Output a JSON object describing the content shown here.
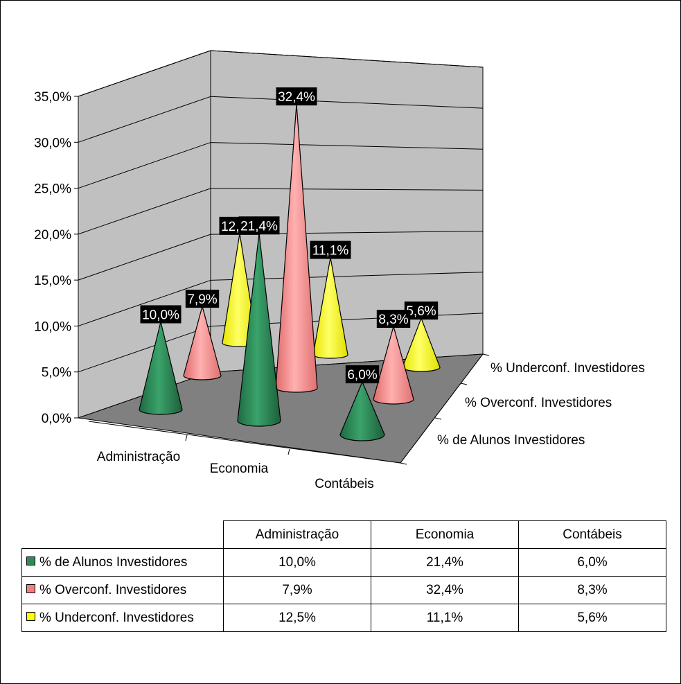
{
  "chart_data": {
    "type": "3d-cone-column",
    "categories": [
      "Administração",
      "Economia",
      "Contábeis"
    ],
    "series": [
      {
        "name": "% de Alunos Investidores",
        "color": "#2e8b57",
        "values": [
          10.0,
          21.4,
          6.0
        ],
        "value_labels": [
          "10,0%",
          "21,4%",
          "6,0%"
        ]
      },
      {
        "name": "% Overconf. Investidores",
        "color": "#f08080",
        "values": [
          7.9,
          32.4,
          8.3
        ],
        "value_labels": [
          "7,9%",
          "32,4%",
          "8,3%"
        ]
      },
      {
        "name": "% Underconf. Investidores",
        "color": "#ffff00",
        "values": [
          12.5,
          11.1,
          5.6
        ],
        "value_labels": [
          "12,5%",
          "11,1%",
          "5,6%"
        ]
      }
    ],
    "y_ticks": [
      "0,0%",
      "5,0%",
      "10,0%",
      "15,0%",
      "20,0%",
      "25,0%",
      "30,0%",
      "35,0%"
    ],
    "ylim": [
      0,
      35
    ],
    "grid": true,
    "wall_color": "#c0c0c0",
    "floor_color": "#808080",
    "label_box_color": "#000000",
    "label_text_color": "#ffffff",
    "data_table": true
  }
}
